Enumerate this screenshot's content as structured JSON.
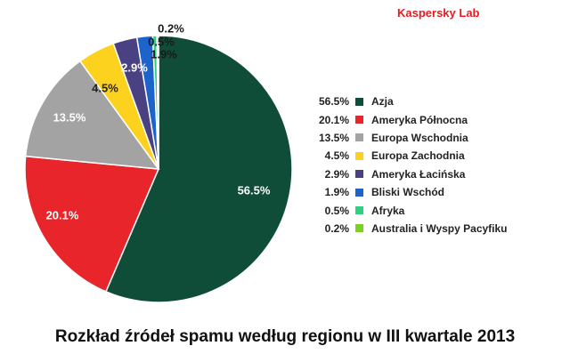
{
  "brand": "Kaspersky Lab",
  "chart_data": {
    "type": "pie",
    "title": "Rozkład źródeł spamu według regionu w III kwartale 2013",
    "slices": [
      {
        "label": "Azja",
        "value": 56.5,
        "display": "56.5%",
        "color": "#0f4d38"
      },
      {
        "label": "Ameryka Północna",
        "value": 20.1,
        "display": "20.1%",
        "color": "#e8252a"
      },
      {
        "label": "Europa Wschodnia",
        "value": 13.5,
        "display": "13.5%",
        "color": "#a3a3a3"
      },
      {
        "label": "Europa Zachodnia",
        "value": 4.5,
        "display": "4.5%",
        "color": "#fcd21f"
      },
      {
        "label": "Ameryka Łacińska",
        "value": 2.9,
        "display": "2.9%",
        "color": "#4a4182"
      },
      {
        "label": "Bliski Wschód",
        "value": 1.9,
        "display": "1.9%",
        "color": "#1c63cc"
      },
      {
        "label": "Afryka",
        "value": 0.5,
        "display": "0.5%",
        "color": "#2fd07e"
      },
      {
        "label": "Australia i Wyspy Pacyfiku",
        "value": 0.2,
        "display": "0.2%",
        "color": "#7bd11f"
      }
    ],
    "legend": "right"
  }
}
